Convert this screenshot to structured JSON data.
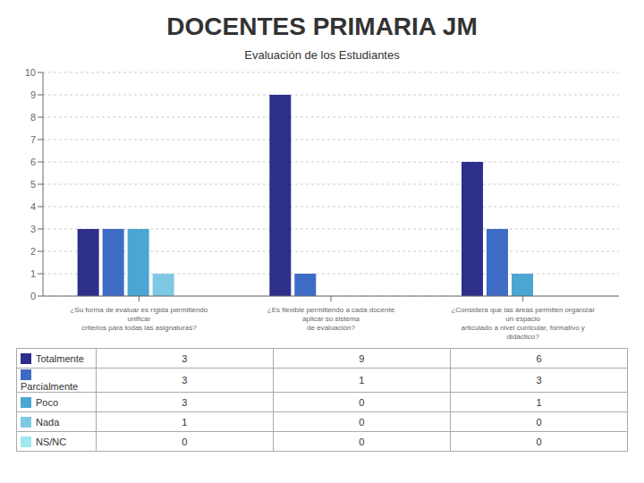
{
  "chart_data": {
    "type": "bar",
    "title": "DOCENTES PRIMARIA JM",
    "subtitle": "Evaluación de los Estudiantes",
    "categories": [
      "¿Su forma de evaluar es rígida permitiendo unificar\ncriterios para todas las asignaturas?",
      "¿Es flexible permitiendo a cada docente aplicar su sistema\nde evaluación?",
      "¿Considera que las áreas permiten organizar un espacio\narticulado a nivel curricular, formativo y didáctico?"
    ],
    "series": [
      {
        "name": "Totalmente",
        "color": "#2E2E8B",
        "values": [
          3,
          9,
          6
        ]
      },
      {
        "name": "Parcialmente",
        "color": "#3E6BC4",
        "values": [
          3,
          1,
          3
        ]
      },
      {
        "name": "Poco",
        "color": "#4BA6D4",
        "values": [
          3,
          0,
          1
        ]
      },
      {
        "name": "Nada",
        "color": "#7EC8E3",
        "values": [
          1,
          0,
          0
        ]
      },
      {
        "name": "NS/NC",
        "color": "#A0E8F0",
        "values": [
          0,
          0,
          0
        ]
      }
    ],
    "ylim": [
      0,
      10
    ],
    "yticks": [
      0,
      1,
      2,
      3,
      4,
      5,
      6,
      7,
      8,
      9,
      10
    ],
    "grid": true,
    "legend": "bottom"
  }
}
